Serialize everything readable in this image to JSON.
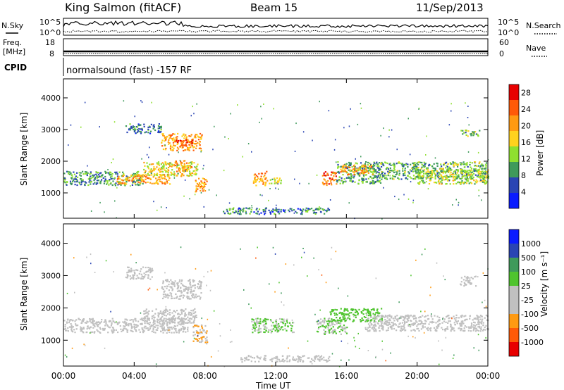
{
  "header": {
    "station": "King Salmon (fitACF)",
    "beam": "Beam 15",
    "date": "11/Sep/2013"
  },
  "strips": {
    "nsky_label": "N.Sky",
    "nsearch_label": "N.Search",
    "noise_ticks_left": [
      "10^5",
      "10^0"
    ],
    "noise_ticks_right": [
      "10^5",
      "10^0"
    ],
    "freq_label_1": "Freq.",
    "freq_label_2": "[MHz]",
    "freq_ticks": [
      "18",
      "8"
    ],
    "nave_label": "Nave",
    "nave_ticks": [
      "60",
      "0"
    ],
    "cpid_label": "CPID",
    "cpid_text": "normalsound (fast) -157 RF"
  },
  "colors": {
    "power_scale": [
      "#0a1cff",
      "#2a45b4",
      "#3f9a5b",
      "#8fe030",
      "#ffd21e",
      "#ff9a12",
      "#ff5a08",
      "#e80000"
    ],
    "velocity_scale": [
      "#e80000",
      "#ff5a08",
      "#ff9a12",
      "#c0c0c0",
      "#c0c0c0",
      "#4fc42e",
      "#3f9a5b",
      "#2a45b4",
      "#0a1cff"
    ],
    "ground_scatter": "#c0c0c0"
  },
  "chart_data": [
    {
      "type": "heatmap",
      "xlabel": "",
      "ylabel": "Slant Range [km]",
      "x_ticks": [
        "00:00",
        "04:00",
        "08:00",
        "12:00",
        "16:00",
        "20:00",
        "00:00"
      ],
      "y_ticks": [
        "1000",
        "2000",
        "3000",
        "4000"
      ],
      "xlim": [
        0,
        24
      ],
      "ylim": [
        200,
        4600
      ],
      "colorbar_label": "Power [dB]",
      "colorbar_ticks": [
        "4",
        "8",
        "12",
        "16",
        "20",
        "24",
        "28"
      ],
      "colorbar_range": [
        0,
        30
      ],
      "regions": [
        {
          "t": [
            0.0,
            4.5
          ],
          "r": [
            1250,
            1700
          ],
          "value": 10
        },
        {
          "t": [
            3.0,
            6.0
          ],
          "r": [
            1300,
            1600
          ],
          "value": 20
        },
        {
          "t": [
            4.5,
            7.6
          ],
          "r": [
            1550,
            2000
          ],
          "value": 16
        },
        {
          "t": [
            6.3,
            7.2
          ],
          "r": [
            1700,
            2050
          ],
          "value": 20
        },
        {
          "t": [
            5.5,
            7.8
          ],
          "r": [
            2350,
            2900
          ],
          "value": 20
        },
        {
          "t": [
            6.3,
            7.3
          ],
          "r": [
            2500,
            2700
          ],
          "value": 26
        },
        {
          "t": [
            3.5,
            5.5
          ],
          "r": [
            2900,
            3200
          ],
          "value": 8
        },
        {
          "t": [
            7.4,
            8.1
          ],
          "r": [
            1000,
            1500
          ],
          "value": 20
        },
        {
          "t": [
            10.7,
            11.5
          ],
          "r": [
            1250,
            1700
          ],
          "value": 20
        },
        {
          "t": [
            11.6,
            12.3
          ],
          "r": [
            1300,
            1500
          ],
          "value": 12
        },
        {
          "t": [
            14.6,
            15.4
          ],
          "r": [
            1250,
            1700
          ],
          "value": 24
        },
        {
          "t": [
            15.4,
            18.0
          ],
          "r": [
            1300,
            2000
          ],
          "value": 10
        },
        {
          "t": [
            15.6,
            17.5
          ],
          "r": [
            1600,
            1900
          ],
          "value": 20
        },
        {
          "t": [
            17.5,
            24.0
          ],
          "r": [
            1450,
            2000
          ],
          "value": 11
        },
        {
          "t": [
            20.0,
            24.0
          ],
          "r": [
            1300,
            1800
          ],
          "value": 14
        },
        {
          "t": [
            22.4,
            23.5
          ],
          "r": [
            2800,
            3000
          ],
          "value": 12
        },
        {
          "t": [
            9.0,
            15.0
          ],
          "r": [
            350,
            550
          ],
          "value": 8
        }
      ]
    },
    {
      "type": "heatmap",
      "xlabel": "Time UT",
      "ylabel": "Slant Range [km]",
      "x_ticks": [
        "00:00",
        "04:00",
        "08:00",
        "12:00",
        "16:00",
        "20:00",
        "00:00"
      ],
      "y_ticks": [
        "1000",
        "2000",
        "3000",
        "4000"
      ],
      "xlim": [
        0,
        24
      ],
      "ylim": [
        200,
        4600
      ],
      "colorbar_label": "Velocity [m s⁻¹]",
      "colorbar_ticks": [
        "1000",
        "500",
        "100",
        "25",
        "-25",
        "-100",
        "-500",
        "-1000"
      ],
      "colorbar_range": [
        -1250,
        1250
      ],
      "regions": [
        {
          "t": [
            0.0,
            7.0
          ],
          "r": [
            1250,
            1700
          ],
          "value": 0,
          "ground_scatter": true
        },
        {
          "t": [
            4.5,
            7.5
          ],
          "r": [
            1550,
            2000
          ],
          "value": 0,
          "ground_scatter": true
        },
        {
          "t": [
            5.5,
            7.8
          ],
          "r": [
            2300,
            2900
          ],
          "value": -300
        },
        {
          "t": [
            3.5,
            5.0
          ],
          "r": [
            2900,
            3300
          ],
          "value": -120
        },
        {
          "t": [
            7.3,
            8.1
          ],
          "r": [
            900,
            1500
          ],
          "value": -400
        },
        {
          "t": [
            10.6,
            13.0
          ],
          "r": [
            1250,
            1700
          ],
          "value": 150
        },
        {
          "t": [
            14.3,
            16.0
          ],
          "r": [
            1200,
            1700
          ],
          "value": 120
        },
        {
          "t": [
            15.0,
            18.0
          ],
          "r": [
            1600,
            2000
          ],
          "value": 250
        },
        {
          "t": [
            17.0,
            24.0
          ],
          "r": [
            1300,
            1800
          ],
          "value": 0,
          "ground_scatter": true
        },
        {
          "t": [
            22.4,
            23.3
          ],
          "r": [
            2700,
            3000
          ],
          "value": -300
        },
        {
          "t": [
            10.0,
            15.0
          ],
          "r": [
            350,
            550
          ],
          "value": 0,
          "ground_scatter": true
        }
      ]
    }
  ]
}
